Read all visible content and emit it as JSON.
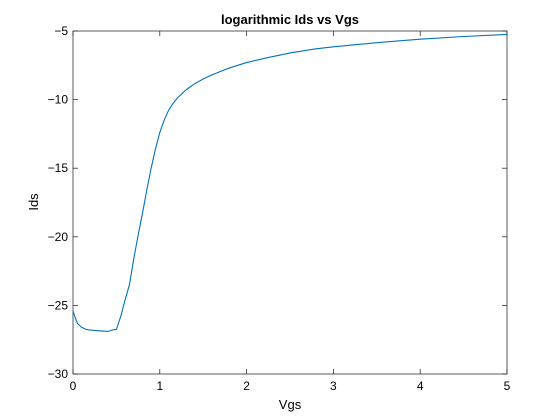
{
  "chart_data": {
    "type": "line",
    "title": "logarithmic Ids vs Vgs",
    "xlabel": "Vgs",
    "ylabel": "Ids",
    "xlim": [
      0,
      5
    ],
    "ylim": [
      -30,
      -5
    ],
    "x_ticks": [
      0,
      1,
      2,
      3,
      4,
      5
    ],
    "y_ticks": [
      -30,
      -25,
      -20,
      -15,
      -10,
      -5
    ],
    "grid": false,
    "legend": "none",
    "line_color": "#0072BD",
    "series": [
      {
        "x": [
          0,
          0.02,
          0.05,
          0.1,
          0.15,
          0.2,
          0.3,
          0.4,
          0.45,
          0.5,
          0.55,
          0.6,
          0.65,
          0.7,
          0.75,
          0.8,
          0.85,
          0.9,
          0.95,
          1.0,
          1.05,
          1.1,
          1.15,
          1.2,
          1.3,
          1.4,
          1.5,
          1.6,
          1.8,
          2.0,
          2.2,
          2.5,
          2.8,
          3.0,
          3.5,
          4.0,
          4.5,
          5.0
        ],
        "y": [
          -25.4,
          -25.8,
          -26.3,
          -26.6,
          -26.75,
          -26.8,
          -26.85,
          -26.9,
          -26.8,
          -26.75,
          -25.8,
          -24.6,
          -23.5,
          -21.6,
          -19.9,
          -18.3,
          -16.6,
          -15.0,
          -13.6,
          -12.4,
          -11.5,
          -10.8,
          -10.3,
          -9.9,
          -9.3,
          -8.85,
          -8.5,
          -8.2,
          -7.7,
          -7.3,
          -7.0,
          -6.6,
          -6.3,
          -6.15,
          -5.85,
          -5.6,
          -5.4,
          -5.25
        ]
      }
    ]
  }
}
